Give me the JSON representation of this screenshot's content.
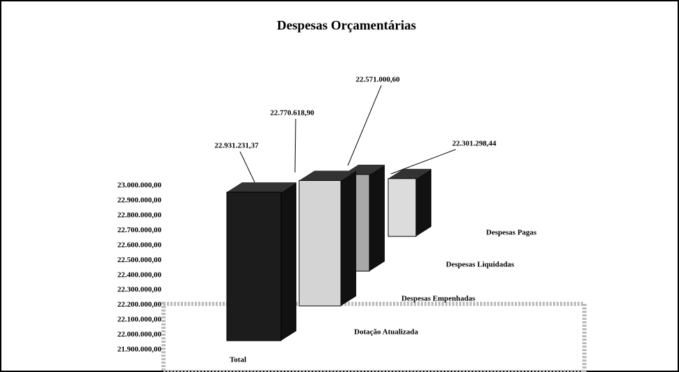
{
  "chart_data": {
    "type": "bar",
    "title": "Despesas Orçamentárias",
    "categories": [
      "Total"
    ],
    "series": [
      {
        "name": "Dotação Atualizada",
        "color": "#1c1c1c",
        "values": [
          22931231.37
        ],
        "value_labels": [
          "22.931.231,37"
        ]
      },
      {
        "name": "Despesas Empenhadas",
        "color": "#d4d4d4",
        "values": [
          22770618.9
        ],
        "value_labels": [
          "22.770.618,90"
        ]
      },
      {
        "name": "Despesas Liquidadas",
        "color": "#a8a8a8",
        "values": [
          22571000.6
        ],
        "value_labels": [
          "22.571.000,60"
        ]
      },
      {
        "name": "Despesas Pagas",
        "color": "#dcdcdc",
        "values": [
          22301298.44
        ],
        "value_labels": [
          "22.301.298,44"
        ]
      }
    ],
    "ylim": [
      21900000,
      23000000
    ],
    "yticks": [
      {
        "value": 23000000,
        "label": "23.000.000,00"
      },
      {
        "value": 22900000,
        "label": "22.900.000,00"
      },
      {
        "value": 22800000,
        "label": "22.800.000,00"
      },
      {
        "value": 22700000,
        "label": "22.700.000,00"
      },
      {
        "value": 22600000,
        "label": "22.600.000,00"
      },
      {
        "value": 22500000,
        "label": "22.500.000,00"
      },
      {
        "value": 22400000,
        "label": "22.400.000,00"
      },
      {
        "value": 22300000,
        "label": "22.300.000,00"
      },
      {
        "value": 22200000,
        "label": "22.200.000,00"
      },
      {
        "value": 22100000,
        "label": "22.100.000,00"
      },
      {
        "value": 22000000,
        "label": "22.000.000,00"
      },
      {
        "value": 21900000,
        "label": "21.900.000,00"
      }
    ]
  }
}
